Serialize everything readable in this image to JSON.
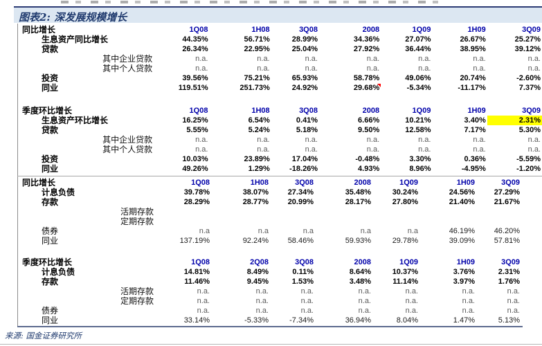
{
  "figure": {
    "title": "图表2: 深发展规模增长",
    "source": "来源: 国金证券研究所"
  },
  "colors": {
    "title_bar_bg": "#dce7f2",
    "accent_navy": "#1f3a6e",
    "column_header_blue": "#0000aa",
    "muted_gray": "#595959",
    "highlight_yellow": "#ffff00",
    "comment_marker_red": "#ff0000"
  },
  "table": {
    "highlight": {
      "section": 1,
      "row": 0,
      "col": 6
    },
    "comment": {
      "section": 0,
      "row": 5,
      "col": 3
    },
    "sections": [
      {
        "block": "A",
        "gap_above": 0,
        "name": "同比增长",
        "cols": [
          "1Q08",
          "1H08",
          "3Q08",
          "2008",
          "1Q09",
          "1H09",
          "3Q09"
        ],
        "rows": [
          {
            "label": "生息资产同比增长",
            "indent": 1,
            "bold": true,
            "values": [
              "44.35%",
              "56.71%",
              "28.99%",
              "34.36%",
              "27.07%",
              "26.67%",
              "25.27%"
            ]
          },
          {
            "label": "贷款",
            "indent": 1,
            "bold": true,
            "values": [
              "26.34%",
              "22.95%",
              "25.04%",
              "27.92%",
              "36.44%",
              "38.95%",
              "39.12%"
            ]
          },
          {
            "label": "其中企业贷款",
            "indent": 2,
            "bold": false,
            "values": [
              "n.a.",
              "n.a.",
              "n.a.",
              "n.a.",
              "n.a.",
              "n.a.",
              "n.a."
            ]
          },
          {
            "label": "其中个人贷款",
            "indent": 2,
            "bold": false,
            "values": [
              "n.a.",
              "n.a.",
              "n.a.",
              "n.a.",
              "n.a.",
              "n.a.",
              "n.a."
            ]
          },
          {
            "label": "投资",
            "indent": 1,
            "bold": true,
            "values": [
              "39.56%",
              "75.21%",
              "65.93%",
              "58.78%",
              "49.06%",
              "20.74%",
              "-2.60%"
            ]
          },
          {
            "label": "同业",
            "indent": 1,
            "bold": true,
            "values": [
              "119.51%",
              "251.73%",
              "24.92%",
              "29.68%",
              "-5.34%",
              "-11.17%",
              "7.37%"
            ]
          }
        ]
      },
      {
        "block": "A",
        "gap_above": 19,
        "name": "季度环比增长",
        "cols": [
          "1Q08",
          "1H08",
          "3Q08",
          "2008",
          "1Q09",
          "1H09",
          "3Q09"
        ],
        "rows": [
          {
            "label": "生息资产环比增长",
            "indent": 1,
            "bold": true,
            "values": [
              "16.25%",
              "6.54%",
              "0.41%",
              "6.66%",
              "10.21%",
              "3.40%",
              "2.31%"
            ]
          },
          {
            "label": "贷款",
            "indent": 1,
            "bold": true,
            "values": [
              "5.55%",
              "5.24%",
              "5.18%",
              "9.50%",
              "12.58%",
              "7.17%",
              "5.30%"
            ]
          },
          {
            "label": "其中企业贷款",
            "indent": 2,
            "bold": false,
            "values": [
              "n.a.",
              "n.a.",
              "n.a.",
              "n.a.",
              "n.a.",
              "n.a.",
              "n.a."
            ]
          },
          {
            "label": "其中个人贷款",
            "indent": 2,
            "bold": false,
            "values": [
              "n.a.",
              "n.a.",
              "n.a.",
              "n.a.",
              "n.a.",
              "n.a.",
              "n.a."
            ]
          },
          {
            "label": "投资",
            "indent": 1,
            "bold": true,
            "values": [
              "10.03%",
              "23.89%",
              "17.04%",
              "-0.48%",
              "3.30%",
              "0.36%",
              "-5.59%"
            ]
          },
          {
            "label": "同业",
            "indent": 1,
            "bold": true,
            "values": [
              "49.26%",
              "1.29%",
              "-18.26%",
              "4.93%",
              "8.96%",
              "-4.95%",
              "-1.20%"
            ]
          }
        ]
      },
      {
        "block": "B",
        "gap_above": 0,
        "name": "同比增长",
        "cols": [
          "1Q08",
          "1H08",
          "3Q08",
          "2008",
          "1Q09",
          "1H09",
          "3Q09"
        ],
        "rows": [
          {
            "label": "计息负债",
            "indent": 1,
            "bold": true,
            "values": [
              "39.78%",
              "38.07%",
              "27.34%",
              "35.48%",
              "30.24%",
              "24.56%",
              "27.29%"
            ]
          },
          {
            "label": "存款",
            "indent": 1,
            "bold": true,
            "values": [
              "28.29%",
              "28.77%",
              "20.99%",
              "28.17%",
              "27.80%",
              "21.40%",
              "21.67%"
            ]
          },
          {
            "label": "活期存款",
            "indent": 2,
            "bold": false,
            "values": [
              "",
              "",
              "",
              "",
              "",
              "",
              ""
            ]
          },
          {
            "label": "定期存款",
            "indent": 2,
            "bold": false,
            "values": [
              "",
              "",
              "",
              "",
              "",
              "",
              ""
            ]
          },
          {
            "label": "债券",
            "indent": 1,
            "bold": false,
            "values": [
              "n.a",
              "n.a",
              "n.a",
              "n.a",
              "n.a",
              "46.19%",
              "46.20%"
            ]
          },
          {
            "label": "同业",
            "indent": 1,
            "bold": false,
            "values": [
              "137.19%",
              "92.24%",
              "58.46%",
              "59.93%",
              "29.78%",
              "39.09%",
              "57.81%"
            ]
          }
        ]
      },
      {
        "block": "B",
        "gap_above": 17,
        "name": "季度环比增长",
        "cols": [
          "1Q08",
          "2Q08",
          "3Q08",
          "2008",
          "1Q09",
          "1H09",
          "3Q09"
        ],
        "rows": [
          {
            "label": "计息负债",
            "indent": 1,
            "bold": true,
            "values": [
              "14.81%",
              "8.49%",
              "0.11%",
              "8.64%",
              "10.37%",
              "3.76%",
              "2.31%"
            ]
          },
          {
            "label": "存款",
            "indent": 1,
            "bold": true,
            "values": [
              "11.46%",
              "9.45%",
              "1.53%",
              "3.48%",
              "11.14%",
              "3.97%",
              "1.76%"
            ]
          },
          {
            "label": "活期存款",
            "indent": 2,
            "bold": false,
            "values": [
              "n.a.",
              "n.a.",
              "n.a.",
              "n.a.",
              "n.a.",
              "n.a.",
              "n.a."
            ]
          },
          {
            "label": "定期存款",
            "indent": 2,
            "bold": false,
            "values": [
              "n.a.",
              "n.a.",
              "n.a.",
              "n.a.",
              "n.a.",
              "n.a.",
              "n.a."
            ]
          },
          {
            "label": "债券",
            "indent": 1,
            "bold": false,
            "values": [
              "n.a.",
              "n.a.",
              "n.a.",
              "n.a.",
              "n.a.",
              "n.a.",
              "n.a."
            ]
          },
          {
            "label": "同业",
            "indent": 1,
            "bold": false,
            "values": [
              "33.14%",
              "-5.33%",
              "-7.34%",
              "36.94%",
              "8.04%",
              "1.47%",
              "5.13%"
            ]
          }
        ]
      }
    ]
  }
}
